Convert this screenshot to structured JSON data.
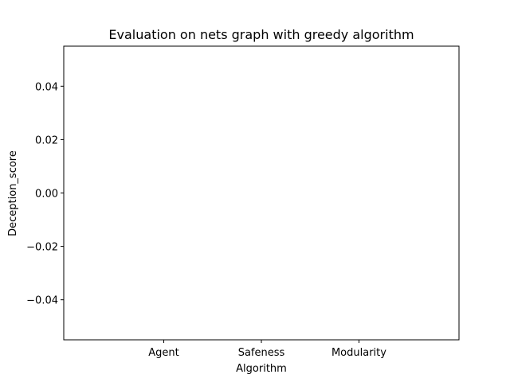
{
  "chart_data": {
    "type": "bar",
    "title": "Evaluation on nets graph with greedy algorithm",
    "xlabel": "Algorithm",
    "ylabel": "Deception_score",
    "categories": [
      "Agent",
      "Safeness",
      "Modularity"
    ],
    "values": [
      0,
      0,
      0
    ],
    "ylim": [
      -0.055,
      0.055
    ],
    "yticks": [
      -0.04,
      -0.02,
      0.0,
      0.02,
      0.04
    ],
    "ytick_labels": [
      "−0.04",
      "−0.02",
      "0.00",
      "0.02",
      "0.04"
    ],
    "grid": false,
    "legend": "none"
  }
}
